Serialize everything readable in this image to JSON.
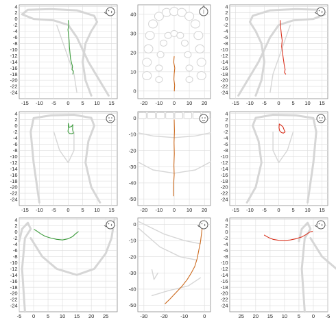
{
  "colors": {
    "green": "#3a9a3a",
    "orange": "#cc6a1e",
    "red": "#d9301c"
  },
  "chart_data": [
    {
      "type": "line",
      "view": "left sagittal",
      "xlim": [
        -17,
        17
      ],
      "ylim": [
        -26,
        4.6
      ],
      "xticks": [
        -15,
        -10,
        -5,
        0,
        5,
        10,
        15
      ],
      "yticks": [
        4,
        2,
        0,
        -2,
        -4,
        -6,
        -8,
        -10,
        -12,
        -14,
        -16,
        -18,
        -20,
        -22,
        -24
      ],
      "icon": "head-side-icon",
      "series": [
        {
          "color": "green",
          "x": [
            0,
            0.2,
            -0.1,
            0.1,
            0.3,
            0.4,
            0.6,
            0.8,
            1.2,
            1.5,
            1.3,
            1.8,
            1.6
          ],
          "y": [
            -0.5,
            -2,
            -3.5,
            -5,
            -7,
            -9,
            -11,
            -13,
            -14.5,
            -15.5,
            -16.5,
            -17,
            -18
          ]
        }
      ]
    },
    {
      "type": "line",
      "view": "occlusal",
      "xlim": [
        -24,
        24
      ],
      "ylim": [
        -4,
        45
      ],
      "xticks": [
        -20,
        -10,
        0,
        10,
        20
      ],
      "yticks": [
        40,
        30,
        20,
        10,
        0
      ],
      "icon": "head-top-icon",
      "series": [
        {
          "color": "orange",
          "x": [
            0,
            -0.3,
            0.4,
            0,
            -0.2,
            0.3,
            0.1
          ],
          "y": [
            18,
            15,
            12,
            9,
            6,
            3,
            0
          ]
        }
      ]
    },
    {
      "type": "line",
      "view": "right sagittal",
      "xlim": [
        -17,
        17
      ],
      "ylim": [
        -26,
        4.6
      ],
      "xticks": [
        -15,
        -10,
        -5,
        0,
        5,
        10,
        15
      ],
      "yticks": [
        4,
        2,
        0,
        -2,
        -4,
        -6,
        -8,
        -10,
        -12,
        -14,
        -16,
        -18,
        -20,
        -22,
        -24
      ],
      "icon": "head-side-icon",
      "series": [
        {
          "color": "red",
          "x": [
            0.5,
            0.7,
            0.9,
            1.2,
            1.0,
            1.3,
            1.6,
            1.9,
            2.2,
            2.0,
            2.4
          ],
          "y": [
            -0.5,
            -3,
            -5,
            -7,
            -9,
            -11,
            -13,
            -15,
            -16.5,
            -17.5,
            -18
          ]
        }
      ]
    },
    {
      "type": "line",
      "view": "left frontal",
      "xlim": [
        -17,
        17
      ],
      "ylim": [
        -26,
        4.6
      ],
      "xticks": [
        -15,
        -10,
        -5,
        0,
        5,
        10,
        15
      ],
      "yticks": [
        4,
        2,
        0,
        -2,
        -4,
        -6,
        -8,
        -10,
        -12,
        -14,
        -16,
        -18,
        -20,
        -22,
        -24
      ],
      "icon": "head-front-icon",
      "series": [
        {
          "color": "green",
          "x": [
            0,
            0.3,
            1.2,
            1.6,
            1.5,
            1.8,
            1.2,
            0.4,
            -0.1,
            0.1,
            0
          ],
          "y": [
            0.8,
            -0.5,
            -0.2,
            0.4,
            -1.2,
            -2.4,
            -2.6,
            -2.5,
            -1.8,
            -0.6,
            0.8
          ]
        }
      ]
    },
    {
      "type": "line",
      "view": "frontal",
      "xlim": [
        -24,
        24
      ],
      "ylim": [
        -54,
        4
      ],
      "xticks": [
        -20,
        -10,
        0,
        10,
        20
      ],
      "yticks": [
        0,
        -10,
        -20,
        -30,
        -40,
        -50
      ],
      "icon": "head-front-icon",
      "series": [
        {
          "color": "orange",
          "x": [
            0,
            0.2,
            -0.1,
            0.1,
            -0.2,
            0,
            -0.3,
            -0.5,
            -0.4
          ],
          "y": [
            -1,
            -8,
            -15,
            -22,
            -29,
            -35,
            -40,
            -45,
            -48
          ]
        }
      ]
    },
    {
      "type": "line",
      "view": "right frontal",
      "xlim": [
        -17,
        17
      ],
      "ylim": [
        -26,
        4.6
      ],
      "xticks": [
        -15,
        -10,
        -5,
        0,
        5,
        10,
        15
      ],
      "yticks": [
        4,
        2,
        0,
        -2,
        -4,
        -6,
        -8,
        -10,
        -12,
        -14,
        -16,
        -18,
        -20,
        -22,
        -24
      ],
      "icon": "head-front-icon",
      "series": [
        {
          "color": "red",
          "x": [
            0.2,
            0.8,
            1.5,
            1.8,
            2.2,
            1.6,
            0.9,
            0.3,
            0.1,
            0.2
          ],
          "y": [
            0.6,
            0.2,
            -0.4,
            -1.2,
            -2.0,
            -2.4,
            -2.2,
            -1.6,
            -0.6,
            0.6
          ]
        }
      ]
    },
    {
      "type": "line",
      "view": "left axial",
      "xlim": [
        -5,
        29
      ],
      "ylim": [
        -26,
        4.6
      ],
      "xticks": [
        -5,
        0,
        5,
        10,
        15,
        20,
        25
      ],
      "yticks": [
        4,
        2,
        0,
        -2,
        -4,
        -6,
        -8,
        -10,
        -12,
        -14,
        -16,
        -18,
        -20,
        -22,
        -24
      ],
      "icon": "head-side-icon",
      "series": [
        {
          "color": "green",
          "x": [
            0.2,
            1,
            2.5,
            4,
            6,
            8,
            10,
            12,
            13.5,
            14.5,
            15.5
          ],
          "y": [
            0.8,
            0.4,
            -0.6,
            -1.4,
            -2,
            -2.4,
            -2.6,
            -2.2,
            -1.5,
            -0.6,
            0.1
          ]
        }
      ]
    },
    {
      "type": "line",
      "view": "lateral",
      "xlim": [
        -33,
        3
      ],
      "ylim": [
        -54,
        4
      ],
      "xticks": [
        -30,
        -20,
        -10,
        0
      ],
      "yticks": [
        0,
        -10,
        -20,
        -30,
        -40,
        -50
      ],
      "icon": "head-side-icon",
      "series": [
        {
          "color": "orange",
          "x": [
            -1,
            -1.5,
            -2,
            -2.8,
            -3.6,
            -4.8,
            -6.5,
            -8.5,
            -11,
            -14,
            -17,
            -19.5
          ],
          "y": [
            -1,
            -6,
            -11,
            -16,
            -21,
            -26,
            -30,
            -34,
            -38,
            -42,
            -46,
            -49
          ]
        }
      ]
    },
    {
      "type": "line",
      "view": "right axial",
      "xlim": [
        29,
        -5
      ],
      "ylim": [
        -26,
        4.6
      ],
      "xticks": [
        25,
        20,
        15,
        10,
        5,
        0,
        -5
      ],
      "yticks": [
        4,
        2,
        0,
        -2,
        -4,
        -6,
        -8,
        -10,
        -12,
        -14,
        -16,
        -18,
        -20,
        -22,
        -24
      ],
      "icon": "head-side-icon",
      "series": [
        {
          "color": "red",
          "x": [
            17,
            15.5,
            14,
            12,
            10,
            8,
            6,
            4,
            2.5,
            1.2,
            0.3
          ],
          "y": [
            -1,
            -1.8,
            -2.4,
            -2.7,
            -2.8,
            -2.6,
            -2.2,
            -1.6,
            -0.8,
            0,
            0.2
          ]
        }
      ]
    }
  ]
}
